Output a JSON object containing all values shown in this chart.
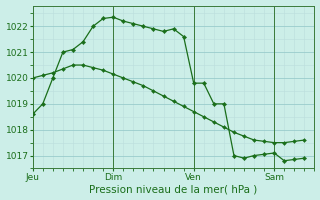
{
  "background_color": "#cceee8",
  "grid_major_color": "#99cccc",
  "grid_minor_color": "#bbdddd",
  "line_color": "#1a6e1a",
  "xlabel": "Pression niveau de la mer( hPa )",
  "ylim": [
    1016.5,
    1022.8
  ],
  "yticks": [
    1017,
    1018,
    1019,
    1020,
    1021,
    1022
  ],
  "day_labels": [
    "Jeu",
    "Dim",
    "Ven",
    "Sam"
  ],
  "day_positions": [
    0,
    48,
    96,
    144
  ],
  "total_hours": 168,
  "series1_x": [
    0,
    6,
    12,
    18,
    24,
    30,
    36,
    42,
    48,
    54,
    60,
    66,
    72,
    78,
    84,
    90,
    96,
    102,
    108,
    114,
    120,
    126,
    132,
    138,
    144,
    150,
    156,
    162
  ],
  "series1_y": [
    1018.6,
    1019.0,
    1020.0,
    1021.0,
    1021.1,
    1021.4,
    1022.0,
    1022.3,
    1022.35,
    1022.2,
    1022.1,
    1022.0,
    1021.9,
    1021.8,
    1021.9,
    1021.6,
    1019.8,
    1019.8,
    1019.0,
    1019.0,
    1017.0,
    1016.9,
    1017.0,
    1017.05,
    1017.1,
    1016.8,
    1016.85,
    1016.9
  ],
  "series2_x": [
    0,
    6,
    12,
    18,
    24,
    30,
    36,
    42,
    48,
    54,
    60,
    66,
    72,
    78,
    84,
    90,
    96,
    102,
    108,
    114,
    120,
    126,
    132,
    138,
    144,
    150,
    156,
    162
  ],
  "series2_y": [
    1020.0,
    1020.1,
    1020.2,
    1020.35,
    1020.5,
    1020.5,
    1020.4,
    1020.3,
    1020.15,
    1020.0,
    1019.85,
    1019.7,
    1019.5,
    1019.3,
    1019.1,
    1018.9,
    1018.7,
    1018.5,
    1018.3,
    1018.1,
    1017.9,
    1017.75,
    1017.6,
    1017.55,
    1017.5,
    1017.5,
    1017.55,
    1017.6
  ],
  "tick_fontsize": 6.5,
  "xlabel_fontsize": 7.5
}
